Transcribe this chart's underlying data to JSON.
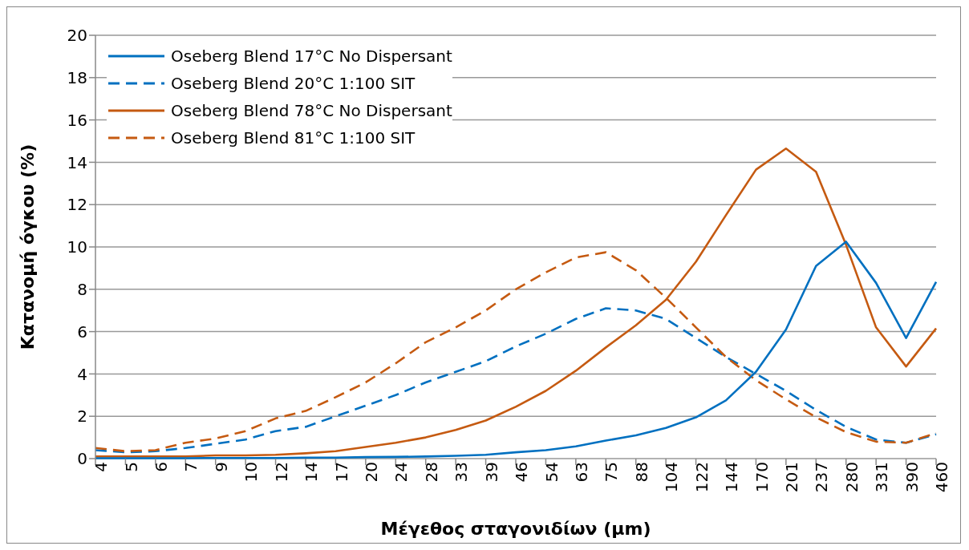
{
  "chart_data": {
    "type": "line",
    "xlabel": "Μέγεθος σταγονιδίων (μm)",
    "ylabel": "Κατανομή όγκου (%)",
    "categories": [
      "4",
      "5",
      "6",
      "7",
      "9",
      "10",
      "12",
      "14",
      "17",
      "20",
      "24",
      "28",
      "33",
      "39",
      "46",
      "54",
      "63",
      "75",
      "88",
      "104",
      "122",
      "144",
      "170",
      "201",
      "237",
      "280",
      "331",
      "390",
      "460"
    ],
    "series": [
      {
        "name": "Oseberg Blend 17°C No Dispersant",
        "color": "#0070c0",
        "line_style": "solid",
        "values": [
          0.02,
          0.02,
          0.02,
          0.02,
          0.03,
          0.03,
          0.03,
          0.05,
          0.05,
          0.07,
          0.08,
          0.1,
          0.13,
          0.18,
          0.3,
          0.4,
          0.58,
          0.85,
          1.1,
          1.45,
          1.95,
          2.75,
          4.1,
          6.1,
          9.1,
          10.25,
          8.3,
          5.7,
          8.35
        ]
      },
      {
        "name": "Oseberg Blend 20°C 1:100 SIT",
        "color": "#0070c0",
        "line_style": "dashed",
        "values": [
          0.4,
          0.3,
          0.35,
          0.5,
          0.7,
          0.9,
          1.3,
          1.5,
          2.0,
          2.5,
          3.0,
          3.6,
          4.1,
          4.6,
          5.3,
          5.9,
          6.6,
          7.1,
          7.0,
          6.6,
          5.7,
          4.8,
          4.0,
          3.2,
          2.3,
          1.5,
          0.9,
          0.75,
          1.15
        ]
      },
      {
        "name": "Oseberg Blend 78°C No Dispersant",
        "color": "#c55a11",
        "line_style": "solid",
        "values": [
          0.1,
          0.1,
          0.1,
          0.1,
          0.15,
          0.15,
          0.18,
          0.25,
          0.35,
          0.55,
          0.75,
          1.0,
          1.35,
          1.8,
          2.45,
          3.2,
          4.15,
          5.25,
          6.3,
          7.5,
          9.3,
          11.5,
          13.65,
          14.65,
          13.55,
          10.1,
          6.2,
          4.35,
          6.15
        ]
      },
      {
        "name": "Oseberg Blend 81°C 1:100 SIT",
        "color": "#c55a11",
        "line_style": "dashed",
        "values": [
          0.5,
          0.35,
          0.4,
          0.75,
          0.95,
          1.3,
          1.9,
          2.25,
          2.9,
          3.6,
          4.5,
          5.5,
          6.2,
          7.0,
          8.0,
          8.8,
          9.5,
          9.75,
          8.9,
          7.6,
          6.2,
          4.8,
          3.7,
          2.8,
          1.95,
          1.25,
          0.8,
          0.75,
          1.2
        ]
      }
    ],
    "ylim": [
      0,
      20
    ],
    "yticks": [
      0,
      2,
      4,
      6,
      8,
      10,
      12,
      14,
      16,
      18,
      20
    ],
    "grid": "y",
    "legend": "top left",
    "marker": "none"
  }
}
